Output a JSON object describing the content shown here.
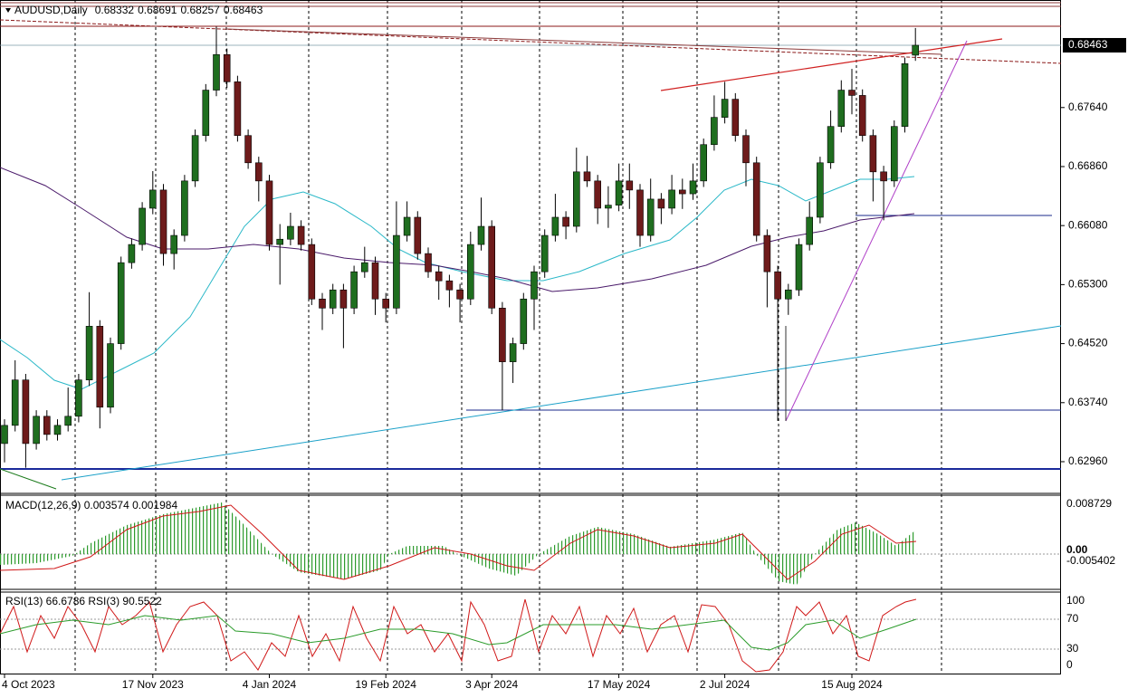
{
  "chart_data": {
    "type": "candlestick",
    "title": "AUDUSD,Daily",
    "categories": [
      "4 Oct 2023",
      null,
      null,
      null,
      null,
      null,
      null,
      null,
      null,
      null,
      null,
      null,
      null,
      null,
      "17 Nov 2023",
      null,
      null,
      null,
      null,
      null,
      null,
      null,
      null,
      null,
      null,
      "4 Jan 2024",
      null,
      null,
      null,
      null,
      null,
      null,
      null,
      null,
      null,
      null,
      "19 Feb 2024",
      null,
      null,
      null,
      null,
      null,
      null,
      null,
      null,
      null,
      "3 Apr 2024",
      null,
      null,
      null,
      null,
      null,
      null,
      null,
      null,
      null,
      null,
      null,
      "17 May 2024",
      null,
      null,
      null,
      null,
      null,
      null,
      null,
      null,
      null,
      "2 Jul 2024",
      null,
      null,
      null,
      null,
      null,
      null,
      null,
      null,
      null,
      null,
      null,
      "15 Aug 2024",
      null,
      null,
      null,
      null,
      null,
      null
    ],
    "open": [
      0.632,
      0.6344,
      0.6404,
      0.632,
      0.6356,
      0.6332,
      0.6344,
      0.6356,
      0.6404,
      0.6475,
      0.6368,
      0.6452,
      0.6559,
      0.6583,
      0.6631,
      0.6655,
      0.6571,
      0.6595,
      0.6667,
      0.6727,
      0.6787,
      0.6834,
      0.6798,
      0.6727,
      0.6691,
      0.6667,
      0.6583,
      0.659,
      0.6607,
      0.6583,
      0.6511,
      0.6499,
      0.6523,
      0.6499,
      0.6547,
      0.6559,
      0.6511,
      0.6499,
      0.6595,
      0.6619,
      0.6571,
      0.6547,
      0.6535,
      0.6523,
      0.6511,
      0.6583,
      0.6607,
      0.6499,
      0.6428,
      0.6452,
      0.6511,
      0.6547,
      0.6595,
      0.6619,
      0.6607,
      0.6679,
      0.6667,
      0.6631,
      0.6635,
      0.6667,
      0.6655,
      0.6595,
      0.6643,
      0.6631,
      0.6655,
      0.665,
      0.6667,
      0.6715,
      0.6751,
      0.6775,
      0.6727,
      0.6691,
      0.6595,
      0.6547,
      0.6511,
      0.6523,
      0.6583,
      0.6619,
      0.6691,
      0.6739,
      0.6787,
      0.678,
      0.6727,
      0.6679,
      0.6667,
      0.6739,
      0.68332
    ],
    "high": [
      0.6352,
      0.643,
      0.6412,
      0.6364,
      0.6364,
      0.6352,
      0.6394,
      0.6412,
      0.652,
      0.6483,
      0.646,
      0.6567,
      0.6591,
      0.6639,
      0.668,
      0.6663,
      0.6603,
      0.6675,
      0.6735,
      0.6795,
      0.6871,
      0.6842,
      0.6806,
      0.6735,
      0.6699,
      0.6675,
      0.661,
      0.6625,
      0.6615,
      0.6591,
      0.6519,
      0.6531,
      0.6531,
      0.6555,
      0.658,
      0.6567,
      0.6519,
      0.664,
      0.664,
      0.6627,
      0.6579,
      0.6555,
      0.6543,
      0.6531,
      0.66,
      0.6645,
      0.6615,
      0.6507,
      0.646,
      0.6519,
      0.6555,
      0.6603,
      0.665,
      0.6627,
      0.6711,
      0.67,
      0.6675,
      0.666,
      0.669,
      0.669,
      0.6663,
      0.667,
      0.6651,
      0.6675,
      0.667,
      0.669,
      0.6723,
      0.678,
      0.6798,
      0.6783,
      0.6735,
      0.6699,
      0.6603,
      0.6555,
      0.6531,
      0.6591,
      0.664,
      0.6699,
      0.676,
      0.68,
      0.6815,
      0.6788,
      0.6735,
      0.6687,
      0.6747,
      0.683,
      0.68691
    ],
    "low": [
      0.6295,
      0.6336,
      0.6288,
      0.6312,
      0.6324,
      0.6324,
      0.6336,
      0.6348,
      0.6396,
      0.634,
      0.636,
      0.6444,
      0.6551,
      0.6575,
      0.6623,
      0.6555,
      0.655,
      0.6587,
      0.6659,
      0.6719,
      0.6779,
      0.679,
      0.6719,
      0.6683,
      0.664,
      0.6575,
      0.653,
      0.6582,
      0.6575,
      0.6503,
      0.647,
      0.6491,
      0.6446,
      0.6491,
      0.6539,
      0.649,
      0.648,
      0.6491,
      0.6587,
      0.6563,
      0.6539,
      0.651,
      0.65,
      0.648,
      0.6503,
      0.6575,
      0.6491,
      0.6364,
      0.64,
      0.6444,
      0.647,
      0.6539,
      0.6587,
      0.659,
      0.6599,
      0.6659,
      0.661,
      0.6605,
      0.6627,
      0.663,
      0.658,
      0.6587,
      0.661,
      0.6623,
      0.663,
      0.6642,
      0.6659,
      0.6707,
      0.6743,
      0.6719,
      0.666,
      0.6587,
      0.65,
      0.635,
      0.649,
      0.6515,
      0.6575,
      0.6611,
      0.6683,
      0.6731,
      0.6755,
      0.6719,
      0.664,
      0.6615,
      0.6659,
      0.6731,
      0.68257
    ],
    "close": [
      0.6344,
      0.6404,
      0.632,
      0.6356,
      0.6332,
      0.6344,
      0.6356,
      0.6404,
      0.6475,
      0.6368,
      0.6452,
      0.6559,
      0.6583,
      0.6631,
      0.6655,
      0.6571,
      0.6595,
      0.6667,
      0.6727,
      0.6787,
      0.6834,
      0.6798,
      0.6727,
      0.6691,
      0.6667,
      0.6583,
      0.659,
      0.6607,
      0.6583,
      0.6511,
      0.6499,
      0.6523,
      0.6499,
      0.6547,
      0.6559,
      0.6511,
      0.6499,
      0.6595,
      0.6619,
      0.6571,
      0.6547,
      0.6535,
      0.6523,
      0.6511,
      0.6583,
      0.6607,
      0.6499,
      0.6428,
      0.6452,
      0.6511,
      0.6547,
      0.6595,
      0.6619,
      0.6607,
      0.6679,
      0.6667,
      0.6631,
      0.6635,
      0.6667,
      0.6655,
      0.6595,
      0.6643,
      0.6631,
      0.6655,
      0.665,
      0.6667,
      0.6715,
      0.6751,
      0.6775,
      0.6727,
      0.6691,
      0.6595,
      0.6547,
      0.6511,
      0.6523,
      0.6583,
      0.6619,
      0.6691,
      0.6739,
      0.6787,
      0.678,
      0.6727,
      0.6679,
      0.6667,
      0.6739,
      0.6822,
      0.68463
    ],
    "colors": {
      "up": "#1f6e1f",
      "down": "#6e1b1b",
      "wick": "#000000"
    },
    "ylim": [
      0.62541,
      0.69061
    ],
    "yticks": [
      {
        "value": 0.6296,
        "label": "0.62960"
      },
      {
        "value": 0.6374,
        "label": "0.63740"
      },
      {
        "value": 0.6452,
        "label": "0.64520"
      },
      {
        "value": 0.653,
        "label": "0.65300"
      },
      {
        "value": 0.6608,
        "label": "0.66080"
      },
      {
        "value": 0.6686,
        "label": "0.66860"
      },
      {
        "value": 0.6764,
        "label": "0.67640"
      }
    ]
  },
  "indicators": {
    "macd": {
      "label": "MACD(12,26,9) 0.003574 0.001984",
      "axis_labels": [
        "0.008729",
        "0.00",
        "-0.005402"
      ]
    },
    "rsi": {
      "label": "RSI(13) 66.6786  RSI(3) 90.5522",
      "axis_labels": [
        "100",
        "70",
        "30",
        "0"
      ]
    }
  }
}
